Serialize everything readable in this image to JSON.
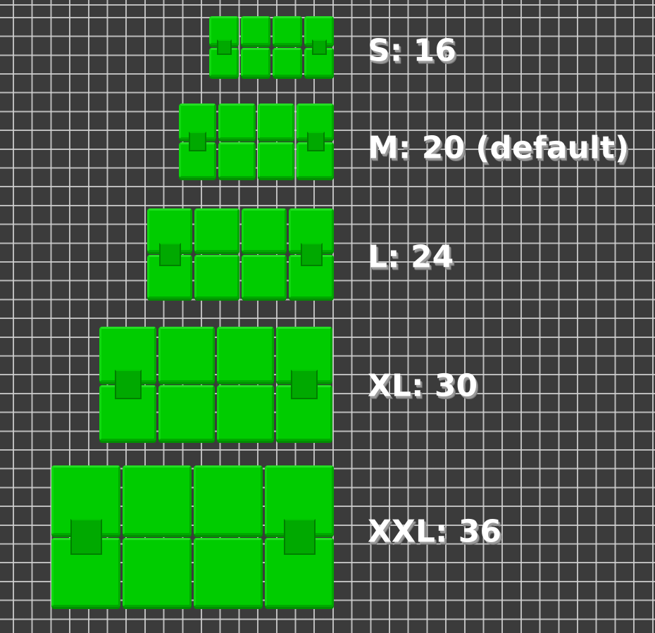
{
  "sizes": [
    {
      "label": "S: 16"
    },
    {
      "label": "M: 20 (default)"
    },
    {
      "label": "L: 24"
    },
    {
      "label": "XL: 30"
    },
    {
      "label": "XXL: 36"
    }
  ],
  "colors": {
    "background": "#3b3b3b",
    "grid": "#d2d2d2",
    "key": "#00cc00",
    "label": "#ffffff"
  }
}
